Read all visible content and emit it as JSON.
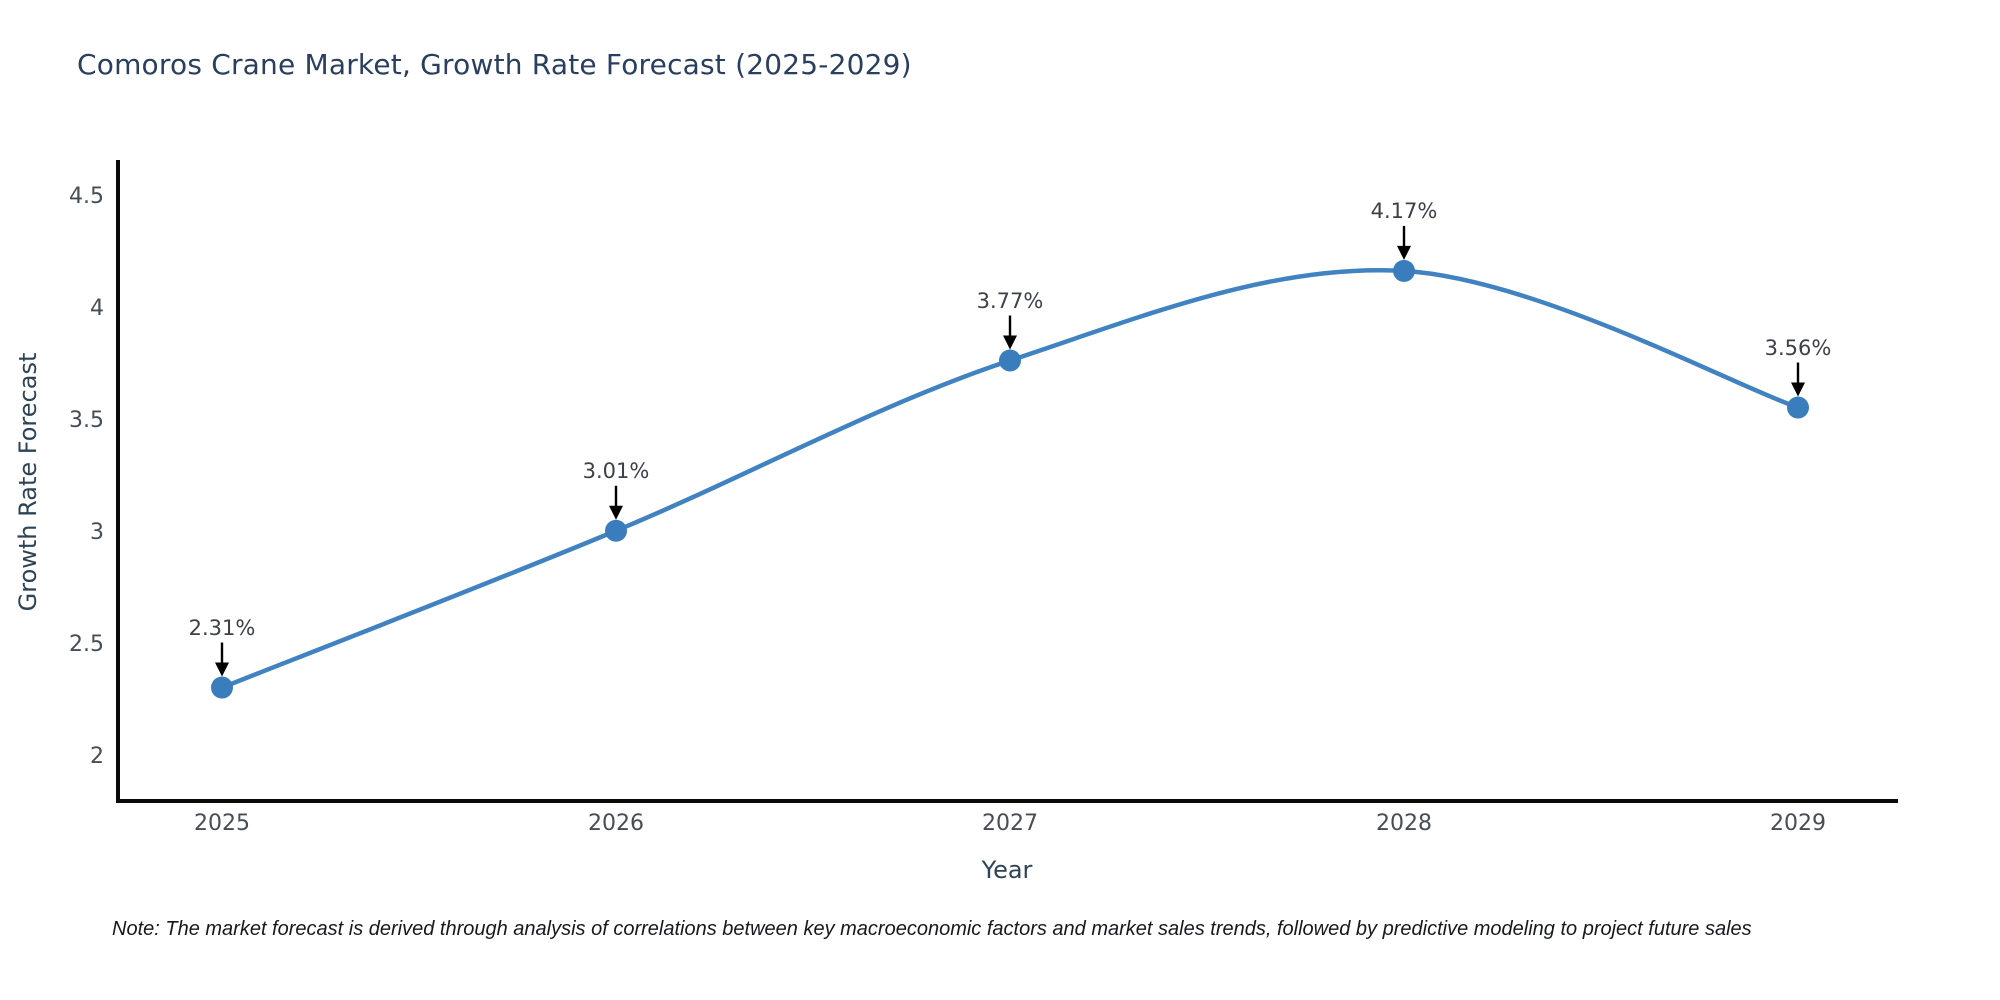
{
  "page": {
    "background": "#ffffff"
  },
  "note": "Note: The market forecast is derived through analysis of correlations between key macroeconomic factors and market sales trends, followed by predictive modeling to project future sales",
  "chart_data": {
    "type": "line",
    "title": "Comoros Crane Market, Growth Rate Forecast (2025-2029)",
    "xlabel": "Year",
    "ylabel": "Growth Rate Forecast",
    "categories": [
      "2025",
      "2026",
      "2027",
      "2028",
      "2029"
    ],
    "values": [
      2.31,
      3.01,
      3.77,
      4.17,
      3.56
    ],
    "point_labels": [
      "2.31%",
      "3.01%",
      "3.77%",
      "4.17%",
      "3.56%"
    ],
    "ytick_labels": [
      "2",
      "2.5",
      "3",
      "3.5",
      "4",
      "4.5"
    ],
    "ytick_values": [
      2,
      2.5,
      3,
      3.5,
      4,
      4.5
    ],
    "ylim": [
      1.79,
      4.67
    ],
    "line_shape": "spline",
    "grid": false,
    "legend": false,
    "annotations_have_arrows": true,
    "colors": {
      "line": "#4183c0",
      "marker": "#3a7dbd",
      "axis": "#0a0a0a",
      "arrow": "#000000",
      "title_text": "#2a3f5f",
      "axis_title_text": "#2e4356",
      "tick_text": "#474d57",
      "annotation_text": "#3d4048",
      "note_text": "#16191e"
    }
  }
}
